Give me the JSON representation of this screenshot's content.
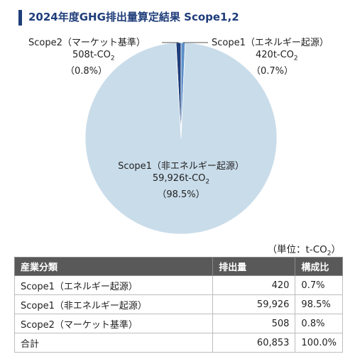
{
  "chart_data": {
    "type": "pie",
    "title": "2024年度GHG排出量算定結果 Scope1,2",
    "slices": [
      {
        "label": "Scope1（非エネルギー起源）",
        "value": 59926,
        "value_text": "59,926t-CO",
        "sub": "2",
        "percent_text": "（98.5%）",
        "color": "#c9dcea"
      },
      {
        "label": "Scope2（マーケット基準）",
        "value": 508,
        "value_text": "508t-CO",
        "sub": "2",
        "percent_text": "（0.8%）",
        "color": "#1f3d7a"
      },
      {
        "label": "Scope1（エネルギー起源）",
        "value": 420,
        "value_text": "420t-CO",
        "sub": "2",
        "percent_text": "（0.7%）",
        "color": "#5b8fc8"
      }
    ]
  },
  "unit_label": "（単位：t-CO",
  "unit_sub": "2",
  "unit_close": "）",
  "table": {
    "headers": [
      "産業分類",
      "排出量",
      "構成比"
    ],
    "rows": [
      [
        "Scope1（エネルギー起源）",
        "420",
        "0.7%"
      ],
      [
        "Scope1（非エネルギー起源）",
        "59,926",
        "98.5%"
      ],
      [
        "Scope2（マーケット基準）",
        "508",
        "0.8%"
      ],
      [
        "合計",
        "60,853",
        "100.0%"
      ]
    ]
  }
}
